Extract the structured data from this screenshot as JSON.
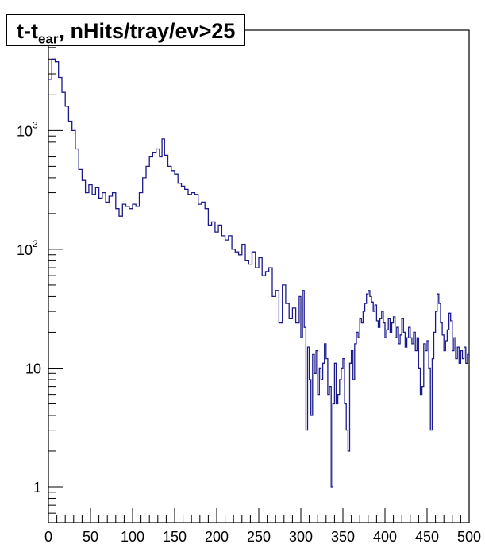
{
  "chart_data": {
    "type": "line",
    "title": {
      "prefix": "t-t",
      "subscript": "ear",
      "suffix": ", nHits/tray/ev>25"
    },
    "xlabel": "",
    "ylabel": "",
    "xlim": [
      0,
      500
    ],
    "ylim": [
      0.5,
      7000
    ],
    "yscale": "log",
    "grid": false,
    "line_color": "#1a1a8c",
    "x_ticks": [
      {
        "value": 0,
        "label": "0"
      },
      {
        "value": 50,
        "label": "50"
      },
      {
        "value": 100,
        "label": "100"
      },
      {
        "value": 150,
        "label": "150"
      },
      {
        "value": 200,
        "label": "200"
      },
      {
        "value": 250,
        "label": "250"
      },
      {
        "value": 300,
        "label": "300"
      },
      {
        "value": 350,
        "label": "350"
      },
      {
        "value": 400,
        "label": "400"
      },
      {
        "value": 450,
        "label": "450"
      },
      {
        "value": 500,
        "label": "500"
      }
    ],
    "y_ticks": [
      {
        "value": 1,
        "label": "1",
        "base": "",
        "exp": ""
      },
      {
        "value": 10,
        "label": "10",
        "base": "",
        "exp": ""
      },
      {
        "value": 100,
        "label": "",
        "base": "10",
        "exp": "2"
      },
      {
        "value": 1000,
        "label": "",
        "base": "10",
        "exp": "3"
      }
    ],
    "series": [
      {
        "points": [
          [
            0,
            2700
          ],
          [
            4,
            4000
          ],
          [
            8,
            3800
          ],
          [
            12,
            2800
          ],
          [
            16,
            2100
          ],
          [
            20,
            1600
          ],
          [
            24,
            1200
          ],
          [
            28,
            1000
          ],
          [
            32,
            700
          ],
          [
            36,
            470
          ],
          [
            40,
            380
          ],
          [
            44,
            300
          ],
          [
            48,
            350
          ],
          [
            52,
            290
          ],
          [
            56,
            330
          ],
          [
            60,
            270
          ],
          [
            64,
            300
          ],
          [
            68,
            250
          ],
          [
            72,
            280
          ],
          [
            76,
            300
          ],
          [
            80,
            220
          ],
          [
            84,
            190
          ],
          [
            88,
            240
          ],
          [
            92,
            230
          ],
          [
            96,
            220
          ],
          [
            100,
            240
          ],
          [
            104,
            230
          ],
          [
            108,
            300
          ],
          [
            112,
            400
          ],
          [
            116,
            500
          ],
          [
            120,
            600
          ],
          [
            124,
            650
          ],
          [
            128,
            700
          ],
          [
            132,
            600
          ],
          [
            135,
            850
          ],
          [
            138,
            620
          ],
          [
            142,
            500
          ],
          [
            146,
            460
          ],
          [
            150,
            430
          ],
          [
            154,
            360
          ],
          [
            158,
            340
          ],
          [
            162,
            320
          ],
          [
            166,
            290
          ],
          [
            170,
            300
          ],
          [
            174,
            290
          ],
          [
            178,
            240
          ],
          [
            182,
            250
          ],
          [
            186,
            220
          ],
          [
            190,
            160
          ],
          [
            194,
            170
          ],
          [
            198,
            140
          ],
          [
            202,
            160
          ],
          [
            206,
            130
          ],
          [
            210,
            120
          ],
          [
            214,
            130
          ],
          [
            218,
            100
          ],
          [
            222,
            95
          ],
          [
            226,
            90
          ],
          [
            230,
            110
          ],
          [
            234,
            80
          ],
          [
            238,
            75
          ],
          [
            242,
            95
          ],
          [
            246,
            70
          ],
          [
            250,
            85
          ],
          [
            254,
            60
          ],
          [
            258,
            65
          ],
          [
            262,
            70
          ],
          [
            266,
            40
          ],
          [
            270,
            45
          ],
          [
            274,
            24
          ],
          [
            278,
            50
          ],
          [
            282,
            35
          ],
          [
            286,
            26
          ],
          [
            290,
            32
          ],
          [
            294,
            24
          ],
          [
            298,
            40
          ],
          [
            300,
            18
          ],
          [
            302,
            45
          ],
          [
            304,
            22
          ],
          [
            306,
            3
          ],
          [
            308,
            15
          ],
          [
            310,
            8
          ],
          [
            312,
            4
          ],
          [
            314,
            13
          ],
          [
            316,
            9
          ],
          [
            318,
            14
          ],
          [
            320,
            6
          ],
          [
            322,
            10
          ],
          [
            324,
            8
          ],
          [
            326,
            11
          ],
          [
            328,
            16
          ],
          [
            330,
            12
          ],
          [
            332,
            6
          ],
          [
            334,
            7
          ],
          [
            336,
            1
          ],
          [
            338,
            5
          ],
          [
            340,
            11
          ],
          [
            342,
            5
          ],
          [
            344,
            6
          ],
          [
            346,
            8
          ],
          [
            348,
            10
          ],
          [
            350,
            12
          ],
          [
            352,
            5
          ],
          [
            354,
            3
          ],
          [
            356,
            2
          ],
          [
            358,
            11
          ],
          [
            360,
            14
          ],
          [
            362,
            8
          ],
          [
            364,
            16
          ],
          [
            366,
            20
          ],
          [
            368,
            18
          ],
          [
            370,
            26
          ],
          [
            372,
            24
          ],
          [
            374,
            30
          ],
          [
            376,
            35
          ],
          [
            378,
            42
          ],
          [
            380,
            45
          ],
          [
            382,
            40
          ],
          [
            384,
            36
          ],
          [
            386,
            30
          ],
          [
            388,
            34
          ],
          [
            390,
            25
          ],
          [
            392,
            22
          ],
          [
            394,
            26
          ],
          [
            396,
            30
          ],
          [
            398,
            24
          ],
          [
            400,
            18
          ],
          [
            402,
            21
          ],
          [
            404,
            26
          ],
          [
            406,
            20
          ],
          [
            408,
            24
          ],
          [
            410,
            27
          ],
          [
            412,
            18
          ],
          [
            414,
            22
          ],
          [
            416,
            16
          ],
          [
            418,
            19
          ],
          [
            420,
            26
          ],
          [
            422,
            20
          ],
          [
            424,
            15
          ],
          [
            426,
            18
          ],
          [
            428,
            22
          ],
          [
            430,
            18
          ],
          [
            432,
            16
          ],
          [
            434,
            20
          ],
          [
            436,
            14
          ],
          [
            438,
            18
          ],
          [
            440,
            10
          ],
          [
            442,
            6
          ],
          [
            444,
            7
          ],
          [
            446,
            16
          ],
          [
            448,
            14
          ],
          [
            450,
            17
          ],
          [
            452,
            10
          ],
          [
            454,
            3
          ],
          [
            456,
            12
          ],
          [
            458,
            20
          ],
          [
            460,
            30
          ],
          [
            462,
            42
          ],
          [
            464,
            35
          ],
          [
            466,
            24
          ],
          [
            468,
            19
          ],
          [
            470,
            14
          ],
          [
            472,
            17
          ],
          [
            474,
            21
          ],
          [
            476,
            29
          ],
          [
            478,
            25
          ],
          [
            480,
            14
          ],
          [
            482,
            18
          ],
          [
            484,
            12
          ],
          [
            486,
            15
          ],
          [
            488,
            11
          ],
          [
            490,
            14
          ],
          [
            492,
            12
          ],
          [
            494,
            15
          ],
          [
            496,
            11
          ],
          [
            498,
            13
          ],
          [
            500,
            12
          ]
        ]
      }
    ]
  }
}
